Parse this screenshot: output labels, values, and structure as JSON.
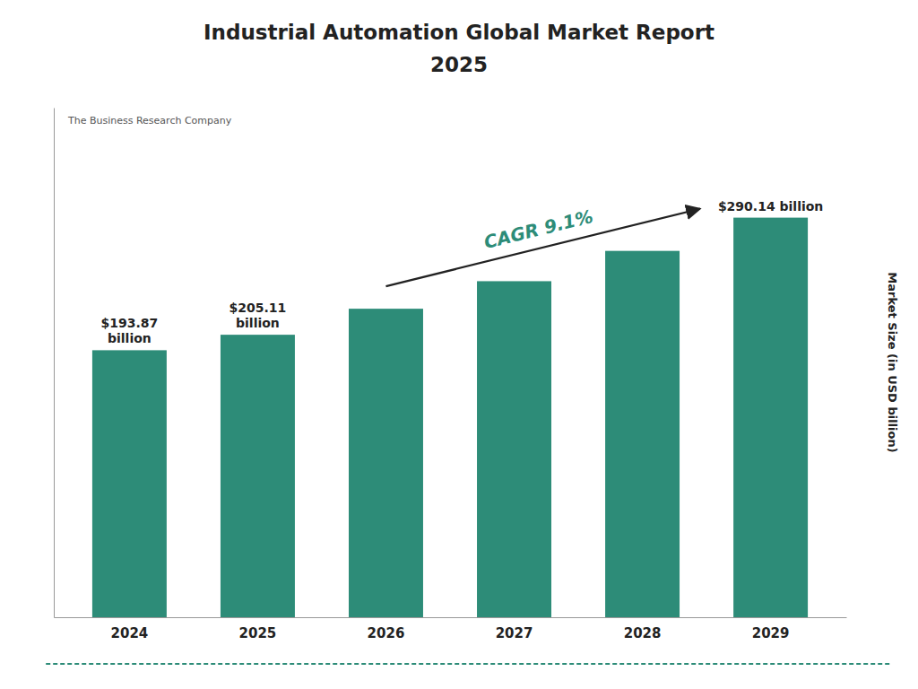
{
  "chart_data": {
    "type": "bar",
    "title": "Industrial Automation Global Market Report",
    "subtitle": "2025",
    "ylabel": "Market Size (in USD billion)",
    "categories": [
      "2024",
      "2025",
      "2026",
      "2027",
      "2028",
      "2029"
    ],
    "values": [
      193.87,
      205.11,
      224.0,
      244.0,
      266.0,
      290.14
    ],
    "value_labels": [
      "$193.87\nbillion",
      "$205.11\nbillion",
      null,
      null,
      null,
      "$290.14 billion"
    ],
    "data_labels": true,
    "color": "#2d8c78",
    "ylim": [
      0,
      370
    ],
    "grid": false,
    "tick_labels": "x",
    "annotations": [
      "CAGR 9.1%",
      "The Business Research Company"
    ]
  }
}
